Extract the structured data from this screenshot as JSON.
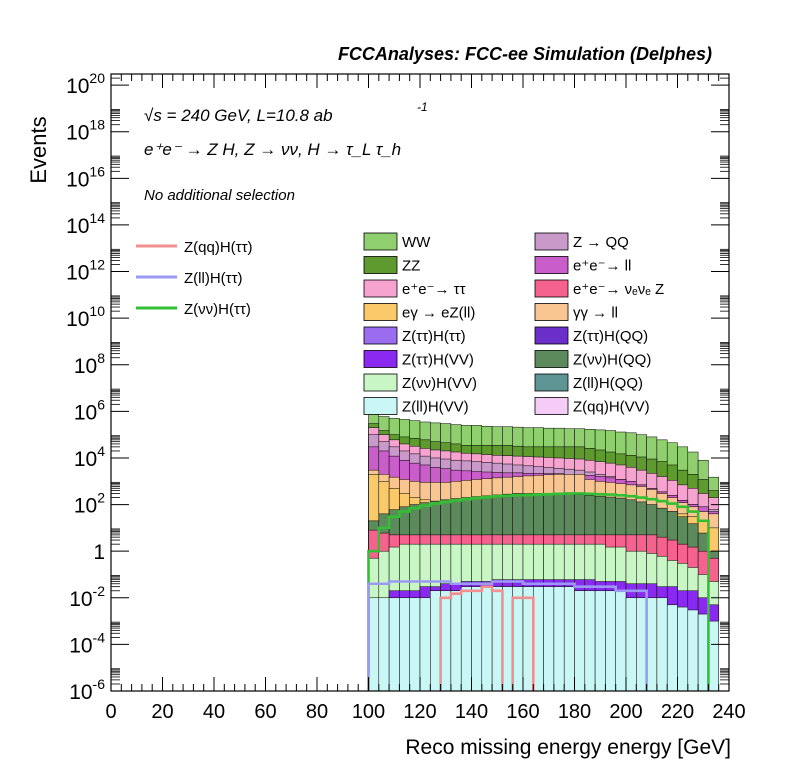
{
  "header": {
    "title": "FCCAnalyses: FCC-ee Simulation (Delphes)"
  },
  "annotations": {
    "energy_lumi": "√s = 240 GeV, L=10.8 ab",
    "energy_lumi_exp": "-1",
    "process": "e⁺e⁻ → Z H, Z → νν, H → τ_L τ_h",
    "selection": "No additional selection"
  },
  "axes": {
    "xlabel": "Reco missing energy energy [GeV]",
    "ylabel": "Events"
  },
  "colors": {
    "WW": "#8fcf6d",
    "ZZ": "#5f9a2e",
    "ee_tautau": "#f7a3cf",
    "egamma_eZll": "#f9c96a",
    "Ztautau_Htautau": "#9a6cf0",
    "Ztautau_HVV": "#8a2af0",
    "Znunu_HVV": "#c8f7c5",
    "Zll_HVV": "#c9f7f5",
    "Z_QQ": "#c99ac9",
    "ee_ll": "#c95dc9",
    "ee_nuenueZ": "#f5628e",
    "gammagamma_ll": "#f9c590",
    "Ztautau_HQQ": "#6a2fc9",
    "Znunu_HQQ": "#5d8a5d",
    "Zll_HQQ": "#5e9494",
    "Zqq_HVV": "#f5ccf7",
    "sig_qq": "#f28f8f",
    "sig_ll": "#9a9af5",
    "sig_nunu": "#33bf33"
  },
  "legend": {
    "signals": [
      {
        "key": "sig_qq",
        "label": "Z(qq)H(ττ)"
      },
      {
        "key": "sig_ll",
        "label": "Z(ll)H(ττ)"
      },
      {
        "key": "sig_nunu",
        "label": "Z(νν)H(ττ)"
      }
    ],
    "backgrounds": [
      {
        "key": "WW",
        "label": "WW"
      },
      {
        "key": "Z_QQ",
        "label": "Z → QQ"
      },
      {
        "key": "ZZ",
        "label": "ZZ"
      },
      {
        "key": "ee_ll",
        "label": "e⁺e⁻→ ll"
      },
      {
        "key": "ee_tautau",
        "label": "e⁺e⁻→ ττ"
      },
      {
        "key": "ee_nuenueZ",
        "label": "e⁺e⁻→ νₑνₑ Z"
      },
      {
        "key": "egamma_eZll",
        "label": "eγ → eZ(ll)"
      },
      {
        "key": "gammagamma_ll",
        "label": "γγ → ll"
      },
      {
        "key": "Ztautau_Htautau",
        "label": "Z(ττ)H(ττ)"
      },
      {
        "key": "Ztautau_HQQ",
        "label": "Z(ττ)H(QQ)"
      },
      {
        "key": "Ztautau_HVV",
        "label": "Z(ττ)H(VV)"
      },
      {
        "key": "Znunu_HQQ",
        "label": "Z(νν)H(QQ)"
      },
      {
        "key": "Znunu_HVV",
        "label": "Z(νν)H(VV)"
      },
      {
        "key": "Zll_HQQ",
        "label": "Z(ll)H(QQ)"
      },
      {
        "key": "Zll_HVV",
        "label": "Z(ll)H(VV)"
      },
      {
        "key": "Zqq_HVV",
        "label": "Z(qq)H(VV)"
      }
    ]
  },
  "chart_data": {
    "type": "area",
    "style": "stacked step histogram with overlaid signal step lines",
    "xlim": [
      0,
      240
    ],
    "ylim": [
      1e-06,
      3e+20
    ],
    "yscale": "log",
    "grid": false,
    "legend_placement": "top-right",
    "x_ticks": [
      0,
      20,
      40,
      60,
      80,
      100,
      120,
      140,
      160,
      180,
      200,
      220,
      240
    ],
    "y_ticks": [
      {
        "value": 1e-06,
        "mant": "10",
        "exp": "-6"
      },
      {
        "value": 0.0001,
        "mant": "10",
        "exp": "-4"
      },
      {
        "value": 0.01,
        "mant": "10",
        "exp": "-2"
      },
      {
        "value": 1,
        "mant": "1",
        "exp": ""
      },
      {
        "value": 100.0,
        "mant": "10",
        "exp": "2"
      },
      {
        "value": 10000.0,
        "mant": "10",
        "exp": "4"
      },
      {
        "value": 1000000.0,
        "mant": "10",
        "exp": "6"
      },
      {
        "value": 100000000.0,
        "mant": "10",
        "exp": "8"
      },
      {
        "value": 10000000000.0,
        "mant": "10",
        "exp": "10"
      },
      {
        "value": 1000000000000.0,
        "mant": "10",
        "exp": "12"
      },
      {
        "value": 100000000000000.0,
        "mant": "10",
        "exp": "14"
      },
      {
        "value": 1e+16,
        "mant": "10",
        "exp": "16"
      },
      {
        "value": 1e+18,
        "mant": "10",
        "exp": "18"
      },
      {
        "value": 1e+20,
        "mant": "10",
        "exp": "20"
      }
    ],
    "bin_edges": [
      100,
      104,
      108,
      112,
      116,
      120,
      124,
      128,
      132,
      136,
      140,
      144,
      148,
      152,
      156,
      160,
      164,
      168,
      172,
      176,
      180,
      184,
      188,
      192,
      196,
      200,
      204,
      208,
      212,
      216,
      220,
      224,
      228,
      232,
      236
    ],
    "stack_tops": [
      {
        "key": "WW",
        "values": [
          800000.0,
          600000.0,
          500000.0,
          450000.0,
          400000.0,
          350000.0,
          320000.0,
          300000.0,
          270000.0,
          250000.0,
          250000.0,
          230000.0,
          220000.0,
          220000.0,
          210000.0,
          200000.0,
          200000.0,
          190000.0,
          190000.0,
          180000.0,
          180000.0,
          170000.0,
          160000.0,
          150000.0,
          130000.0,
          120000.0,
          100000.0,
          80000.0,
          60000.0,
          45000.0,
          30000.0,
          18000.0,
          8000.0,
          1500.0
        ]
      },
      {
        "key": "ZZ",
        "values": [
          300000.0,
          150000.0,
          100000.0,
          80000.0,
          70000.0,
          60000.0,
          50000.0,
          45000.0,
          40000.0,
          35000.0,
          35000.0,
          35000.0,
          35000.0,
          35000.0,
          32000.0,
          30000.0,
          30000.0,
          30000.0,
          30000.0,
          30000.0,
          30000.0,
          26000.0,
          22000.0,
          18000.0,
          15000.0,
          13000.0,
          11000.0,
          9000.0,
          7000.0,
          5000.0,
          3000.0,
          2000.0,
          1200.0,
          400
        ]
      },
      {
        "key": "ee_tautau",
        "values": [
          200000.0,
          100000.0,
          60000.0,
          40000.0,
          32000.0,
          26000.0,
          22000.0,
          20000.0,
          18000.0,
          16000.0,
          15000.0,
          14000.0,
          13000.0,
          12500.0,
          12000.0,
          11500.0,
          11000.0,
          10500.0,
          10000.0,
          9500.0,
          9000.0,
          8000.0,
          7000.0,
          6000.0,
          5000.0,
          4000.0,
          3000.0,
          2200.0,
          1600.0,
          1100.0,
          700,
          500,
          300,
          200
        ]
      },
      {
        "key": "Z_QQ",
        "values": [
          100000.0,
          50000.0,
          30000.0,
          20000.0,
          15000.0,
          12000.0,
          10000.0,
          9000.0,
          8000.0,
          7500.0,
          7000.0,
          6500.0,
          6000.0,
          5500.0,
          5000.0,
          4600.0,
          4200.0,
          3900.0,
          3600.0,
          3300.0,
          3000.0,
          2500.0,
          2000.0,
          1600.0,
          1200.0,
          900,
          700,
          500,
          350,
          250,
          150,
          100,
          80,
          60
        ]
      },
      {
        "key": "ee_ll",
        "values": [
          30000.0,
          20000.0,
          12000.0,
          8000.0,
          6000.0,
          5000.0,
          4000.0,
          3500.0,
          3000.0,
          2800.0,
          2600.0,
          2500.0,
          2400.0,
          2300.0,
          2300.0,
          2200.0,
          2200.0,
          2100.0,
          2100.0,
          2000.0,
          2000.0,
          1800.0,
          1600.0,
          1400.0,
          1200.0,
          1000.0,
          700,
          500,
          350,
          250,
          150,
          100,
          80,
          50
        ]
      },
      {
        "key": "gammagamma_ll",
        "values": [
          3000.0,
          2000.0,
          1500.0,
          1200.0,
          1000.0,
          900,
          900,
          900,
          1000.0,
          1100.0,
          1200.0,
          1300.0,
          1400.0,
          1500.0,
          1600.0,
          1700.0,
          1800.0,
          1900.0,
          2000.0,
          2000.0,
          2000.0,
          1200.0,
          1000.0,
          900,
          800,
          700,
          600,
          450,
          300,
          200,
          120,
          80,
          50,
          40
        ]
      },
      {
        "key": "egamma_eZll",
        "values": [
          2000.0,
          1000.0,
          500,
          300,
          200,
          160,
          140,
          130,
          130,
          130,
          130,
          140,
          150,
          160,
          170,
          180,
          190,
          200,
          210,
          220,
          230,
          200,
          180,
          160,
          140,
          120,
          100,
          80,
          60,
          50,
          40,
          30,
          20,
          10
        ]
      },
      {
        "key": "Znunu_HQQ",
        "values": [
          20,
          40,
          60,
          80,
          100,
          120,
          140,
          160,
          180,
          200,
          220,
          240,
          260,
          280,
          300,
          300,
          300,
          300,
          290,
          280,
          270,
          250,
          230,
          210,
          190,
          160,
          130,
          100,
          70,
          50,
          30,
          15,
          6,
          1
        ]
      },
      {
        "key": "ee_nuenueZ",
        "values": [
          8,
          6,
          5,
          5,
          5,
          5,
          5,
          5,
          5,
          5,
          5,
          5,
          5,
          5,
          5,
          5,
          5,
          5,
          5,
          5,
          5,
          5,
          5,
          5,
          5,
          5,
          5,
          5,
          4,
          3,
          2,
          1.5,
          1,
          0.5
        ]
      },
      {
        "key": "Znunu_HVV",
        "values": [
          0.5,
          1,
          1.5,
          2,
          2,
          2,
          2,
          2,
          2,
          2,
          2,
          2,
          2,
          2,
          2,
          2,
          2,
          2,
          2,
          2,
          2,
          2,
          2,
          1.5,
          1.5,
          1,
          1,
          0.8,
          0.6,
          0.4,
          0.3,
          0.2,
          0.1,
          0.05
        ]
      },
      {
        "key": "Ztautau_HVV",
        "values": [
          0.01,
          0.01,
          0.02,
          0.02,
          0.02,
          0.03,
          0.03,
          0.04,
          0.04,
          0.05,
          0.05,
          0.05,
          0.06,
          0.06,
          0.06,
          0.06,
          0.06,
          0.06,
          0.06,
          0.06,
          0.06,
          0.06,
          0.05,
          0.05,
          0.05,
          0.04,
          0.04,
          0.04,
          0.03,
          0.03,
          0.02,
          0.02,
          0.01,
          0.005
        ]
      },
      {
        "key": "Zll_HVV",
        "values": [
          0.01,
          0.01,
          0.01,
          0.01,
          0.01,
          0.01,
          0.02,
          0.02,
          0.02,
          0.03,
          0.03,
          0.03,
          0.03,
          0.03,
          0.03,
          0.03,
          0.03,
          0.03,
          0.03,
          0.03,
          0.02,
          0.02,
          0.02,
          0.02,
          0.02,
          0.01,
          0.01,
          0.01,
          0.01,
          0.005,
          0.004,
          0.003,
          0.002,
          0.001
        ]
      }
    ],
    "signal_lines": [
      {
        "key": "sig_nunu",
        "values": [
          1,
          10,
          30,
          50,
          70,
          90,
          110,
          130,
          150,
          170,
          190,
          210,
          230,
          240,
          250,
          260,
          270,
          280,
          290,
          300,
          300,
          290,
          280,
          270,
          250,
          230,
          200,
          170,
          140,
          110,
          80,
          50,
          20,
          1e-07
        ]
      },
      {
        "key": "sig_ll",
        "values": [
          0.04,
          0.04,
          0.05,
          0.05,
          0.05,
          0.05,
          0.05,
          0.05,
          0.04,
          0.04,
          0.04,
          0.04,
          0.05,
          0.05,
          0.05,
          0.04,
          0.04,
          0.04,
          0.04,
          0.04,
          0.03,
          0.03,
          0.03,
          0.03,
          0.02,
          0.02,
          0.02,
          1e-07,
          1e-07,
          1e-07,
          1e-07,
          1e-07,
          1e-07,
          1e-07
        ]
      },
      {
        "key": "sig_qq",
        "values": [
          1e-07,
          1e-07,
          1e-07,
          1e-07,
          1e-07,
          1e-07,
          1e-07,
          0.01,
          0.015,
          0.02,
          0.02,
          0.03,
          0.02,
          1e-07,
          0.01,
          0.01,
          1e-07,
          1e-07,
          1e-07,
          1e-07,
          1e-07,
          1e-07,
          1e-07,
          1e-07,
          1e-07,
          1e-07,
          1e-07,
          1e-07,
          1e-07,
          1e-07,
          1e-07,
          1e-07,
          1e-07,
          1e-07
        ]
      }
    ]
  }
}
